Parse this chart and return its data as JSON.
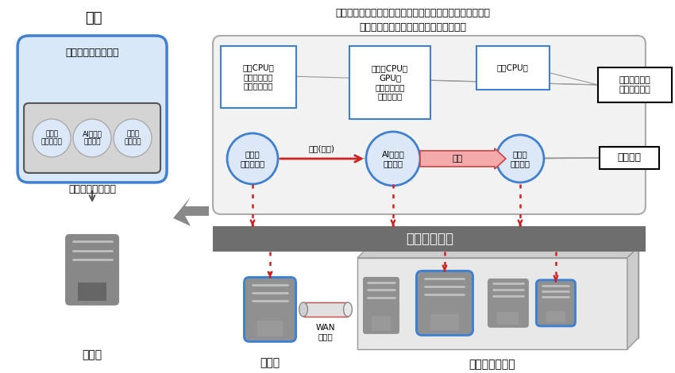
{
  "bg_color": "#ffffff",
  "blue_border": "#4080d0",
  "dark_gray_fill": "#7a7a7a",
  "server_gray": "#888888",
  "light_blue_fill": "#d8e8f8",
  "inner_gray_fill": "#d4d4d4",
  "circle_fill": "#dce8f8",
  "outer_box_fill": "#ececec",
  "red_arrow": "#cc2222",
  "pink_arrow": "#f08888",
  "label_従来": "従来",
  "label_今回_line1": "今回：コンテナ化した各処理をエッジとデータセンターの",
  "label_今回_line2": "実環境上に性能要件にあわせて自動配備",
  "label_一連": "一連の映像解析処理",
  "label_前処理1": "前処理\n（色調整）",
  "label_AI1": "AIによる\n解析処理",
  "label_後処理1": "後処理\n（表示）",
  "label_個別": "個別インストール",
  "label_エッジ1": "エッジ",
  "label_エッジ2": "エッジ",
  "label_DC": "データセンター",
  "label_自動配備": "自動配備設計",
  "label_WAN": "WAN\n狭帯域",
  "label_前処理2": "前処理\n（色調整）",
  "label_AI2": "AIによる\n解析処理",
  "label_後処理2": "後処理\n（表示）",
  "label_映像1": "映像(圧縮)",
  "label_映像2": "映像",
  "label_cpu1": "通常CPU要\nハードウェア\nエンコーダ要",
  "label_cpu2": "高性能CPU要\nGPU要\nハードウェア\nデコーダ要",
  "label_cpu3": "通常CPU要",
  "label_リソース": "リソース要件\nパラメーター",
  "label_コンテナ": "コンテナ"
}
